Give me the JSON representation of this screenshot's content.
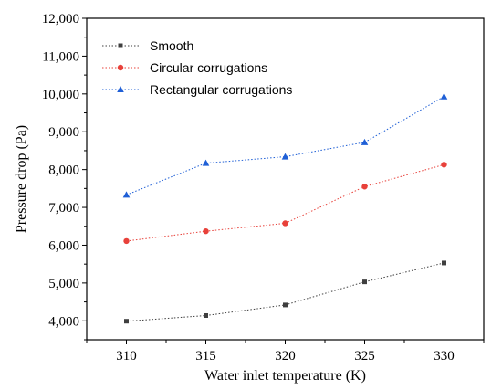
{
  "chart_data": {
    "type": "line",
    "title": "",
    "xlabel": "Water inlet temperature (K)",
    "ylabel": "Pressure drop (Pa)",
    "x": [
      310,
      315,
      320,
      325,
      330
    ],
    "x_tick_labels": [
      "310",
      "315",
      "320",
      "325",
      "330"
    ],
    "xlim": [
      307.5,
      332.5
    ],
    "ylim": [
      3500,
      12000
    ],
    "y_ticks": [
      4000,
      5000,
      6000,
      7000,
      8000,
      9000,
      10000,
      11000,
      12000
    ],
    "y_tick_labels": [
      "4,000",
      "5,000",
      "6,000",
      "7,000",
      "8,000",
      "9,000",
      "10,000",
      "11,000",
      "12,000"
    ],
    "grid": false,
    "legend_position": "top-left",
    "series": [
      {
        "name": "Smooth",
        "marker": "square",
        "color": "#3f3f3f",
        "values": [
          3990,
          4140,
          4420,
          5030,
          5530
        ]
      },
      {
        "name": "Circular corrugations",
        "marker": "circle",
        "color": "#e8413a",
        "values": [
          6110,
          6370,
          6580,
          7550,
          8130
        ]
      },
      {
        "name": "Rectangular corrugations",
        "marker": "triangle",
        "color": "#1f5fd6",
        "values": [
          7330,
          8170,
          8340,
          8720,
          9930
        ]
      }
    ]
  }
}
